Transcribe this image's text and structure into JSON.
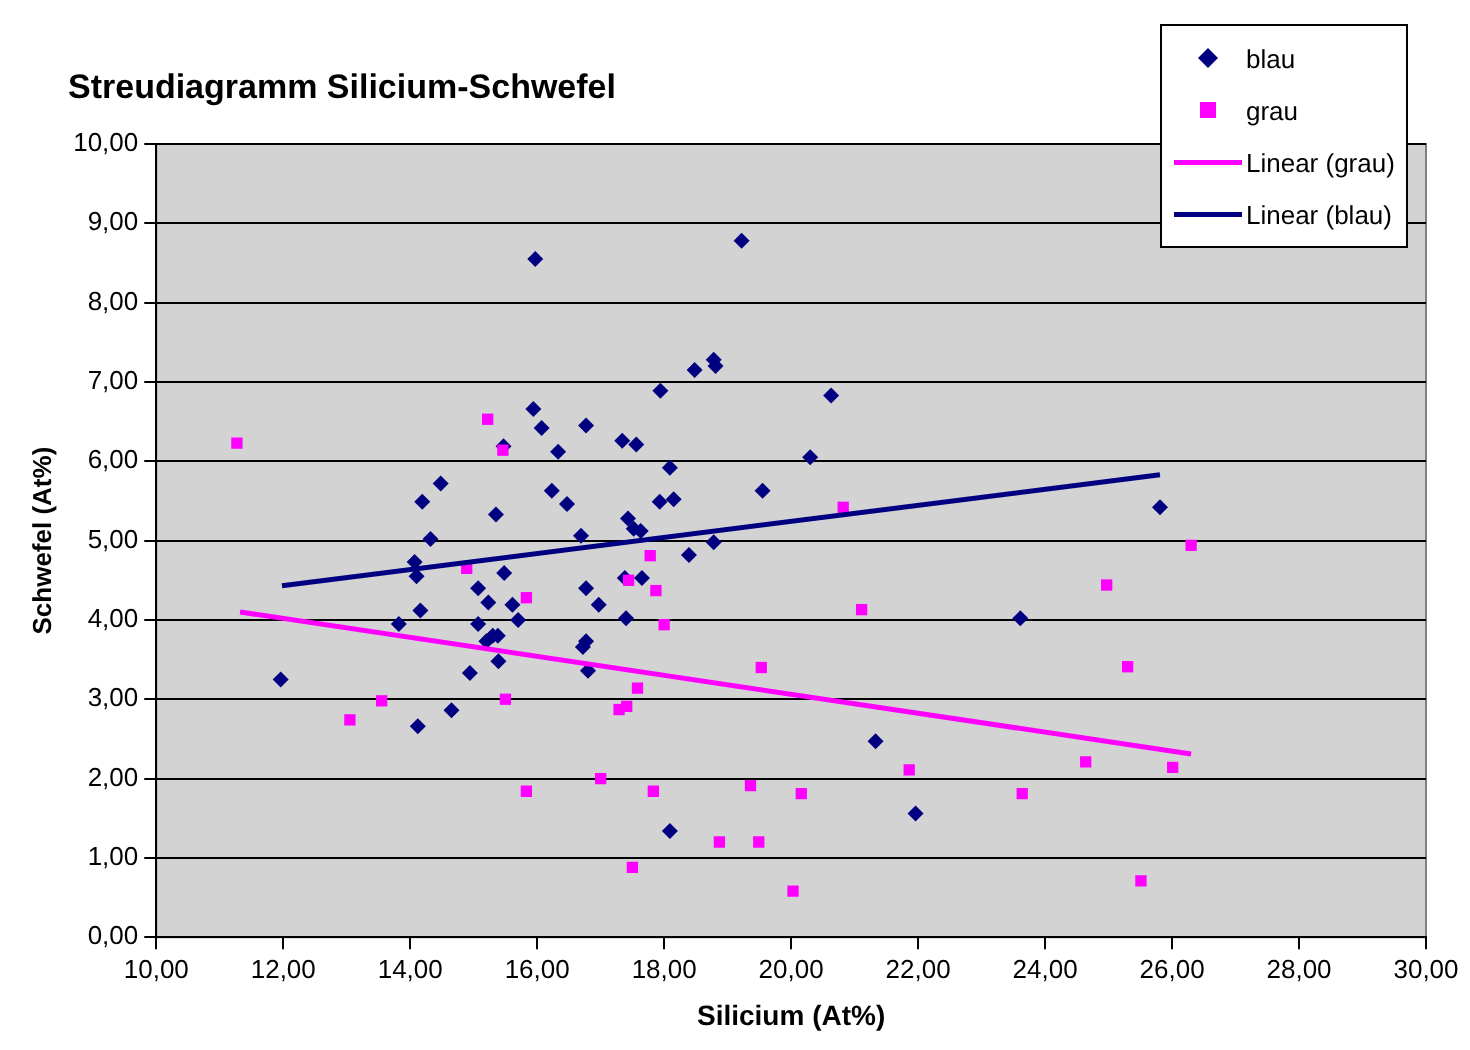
{
  "chart_data": {
    "type": "scatter",
    "title": "Streudiagramm Silicium-Schwefel",
    "xlabel": "Silicium (At%)",
    "ylabel": "Schwefel (At%)",
    "xlim": [
      10,
      30
    ],
    "ylim": [
      0,
      10
    ],
    "xticks": [
      {
        "value": 10,
        "label": "10,00"
      },
      {
        "value": 12,
        "label": "12,00"
      },
      {
        "value": 14,
        "label": "14,00"
      },
      {
        "value": 16,
        "label": "16,00"
      },
      {
        "value": 18,
        "label": "18,00"
      },
      {
        "value": 20,
        "label": "20,00"
      },
      {
        "value": 22,
        "label": "22,00"
      },
      {
        "value": 24,
        "label": "24,00"
      },
      {
        "value": 26,
        "label": "26,00"
      },
      {
        "value": 28,
        "label": "28,00"
      },
      {
        "value": 30,
        "label": "30,00"
      }
    ],
    "yticks": [
      {
        "value": 0,
        "label": "0,00"
      },
      {
        "value": 1,
        "label": "1,00"
      },
      {
        "value": 2,
        "label": "2,00"
      },
      {
        "value": 3,
        "label": "3,00"
      },
      {
        "value": 4,
        "label": "4,00"
      },
      {
        "value": 5,
        "label": "5,00"
      },
      {
        "value": 6,
        "label": "6,00"
      },
      {
        "value": 7,
        "label": "7,00"
      },
      {
        "value": 8,
        "label": "8,00"
      },
      {
        "value": 9,
        "label": "9,00"
      },
      {
        "value": 10,
        "label": "10,00"
      }
    ],
    "grid": "y",
    "legend": "top right",
    "series": [
      {
        "name": "blau",
        "type": "scatter",
        "marker": "diamond",
        "color": "#000080",
        "x": [
          19.22,
          18.48,
          18.78,
          18.81,
          17.94,
          20.63,
          16.77,
          17.34,
          17.56,
          16.33,
          20.3,
          18.09,
          16.47,
          17.93,
          18.15,
          19.55,
          17.43,
          16.69,
          17.52,
          17.63,
          18.39,
          18.78,
          17.38,
          17.65,
          16.77,
          16.97,
          17.4,
          16.72,
          16.77,
          16.8,
          21.33,
          21.96,
          18.09,
          25.81,
          23.61,
          15.97,
          15.94,
          16.07,
          15.47,
          14.48,
          14.19,
          15.35,
          16.23,
          14.32,
          14.07,
          14.1,
          15.48,
          15.07,
          15.23,
          15.61,
          14.16,
          13.82,
          15.07,
          15.7,
          15.3,
          15.38,
          15.2,
          15.39,
          14.94,
          11.96,
          14.65,
          14.12
        ],
        "values": [
          8.78,
          7.15,
          7.28,
          7.2,
          6.89,
          6.83,
          6.45,
          6.26,
          6.21,
          6.12,
          6.05,
          5.92,
          5.46,
          5.49,
          5.52,
          5.63,
          5.28,
          5.06,
          5.15,
          5.12,
          4.82,
          4.98,
          4.53,
          4.53,
          4.4,
          4.19,
          4.02,
          3.66,
          3.73,
          3.36,
          2.47,
          1.56,
          1.34,
          5.42,
          4.02,
          8.55,
          6.66,
          6.42,
          6.19,
          5.72,
          5.49,
          5.33,
          5.63,
          5.02,
          4.73,
          4.55,
          4.59,
          4.4,
          4.22,
          4.19,
          4.12,
          3.95,
          3.95,
          4.0,
          3.8,
          3.8,
          3.73,
          3.48,
          3.33,
          3.25,
          2.86,
          2.66
        ]
      },
      {
        "name": "grau",
        "type": "scatter",
        "marker": "square",
        "color": "#ff00ff",
        "x": [
          11.27,
          15.22,
          15.46,
          14.89,
          15.83,
          13.05,
          13.55,
          15.5,
          15.83,
          20.82,
          17.78,
          17.44,
          17.87,
          21.11,
          18.0,
          19.53,
          17.58,
          17.29,
          17.41,
          17.0,
          17.83,
          19.36,
          20.16,
          21.86,
          18.87,
          19.49,
          17.5,
          20.03,
          26.3,
          24.97,
          25.3,
          24.64,
          26.01,
          23.64,
          25.51
        ],
        "values": [
          6.23,
          6.53,
          6.14,
          4.65,
          4.28,
          2.74,
          2.98,
          3.0,
          1.84,
          5.42,
          4.81,
          4.5,
          4.37,
          4.13,
          3.94,
          3.4,
          3.14,
          2.87,
          2.91,
          2.0,
          1.84,
          1.91,
          1.81,
          2.11,
          1.2,
          1.2,
          0.88,
          0.58,
          4.94,
          4.44,
          3.41,
          2.21,
          2.14,
          1.81,
          0.71
        ]
      },
      {
        "name": "Linear (grau)",
        "type": "line",
        "marker": "none",
        "line_style": "solid",
        "color": "#ff00ff",
        "x": [
          11.32,
          26.3
        ],
        "values": [
          4.1,
          2.31
        ]
      },
      {
        "name": "Linear (blau)",
        "type": "line",
        "marker": "none",
        "line_style": "solid",
        "color": "#000080",
        "x": [
          11.98,
          25.81
        ],
        "values": [
          4.43,
          5.83
        ]
      }
    ]
  }
}
